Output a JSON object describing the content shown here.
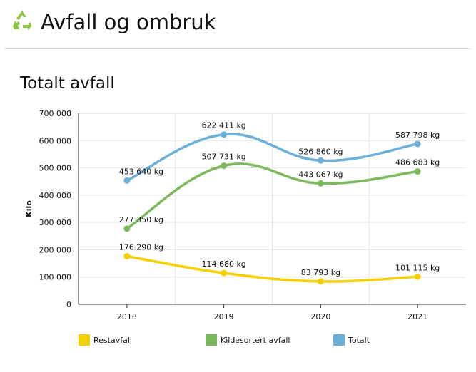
{
  "header": {
    "title": "Avfall og ombruk",
    "icon": "recycle-icon"
  },
  "section": {
    "title": "Totalt avfall"
  },
  "colors": {
    "restavfall": "#f5d000",
    "kildesortert": "#7cb85c",
    "totalt": "#6ab0d8",
    "grid": "#e3e3e3"
  },
  "chart_data": {
    "type": "line",
    "categories": [
      "2018",
      "2019",
      "2020",
      "2021"
    ],
    "ylabel": "Kilo",
    "ylim": [
      0,
      700000
    ],
    "yticks": [
      "0",
      "100 000",
      "200 000",
      "300 000",
      "400 000",
      "500 000",
      "600 000",
      "700 000"
    ],
    "grid": true,
    "legend": "bottom",
    "series": [
      {
        "name": "Restavfall",
        "color": "#f5d000",
        "values": [
          176290,
          114680,
          83793,
          101115
        ],
        "labels": [
          "176 290 kg",
          "114 680 kg",
          "83 793 kg",
          "101 115 kg"
        ]
      },
      {
        "name": "Kildesortert avfall",
        "color": "#7cb85c",
        "values": [
          277350,
          507731,
          443067,
          486683
        ],
        "labels": [
          "277 350 kg",
          "507 731 kg",
          "443 067 kg",
          "486 683 kg"
        ]
      },
      {
        "name": "Totalt",
        "color": "#6ab0d8",
        "values": [
          453640,
          622411,
          526860,
          587798
        ],
        "labels": [
          "453 640 kg",
          "622 411 kg",
          "526 860 kg",
          "587 798 kg"
        ]
      }
    ]
  }
}
